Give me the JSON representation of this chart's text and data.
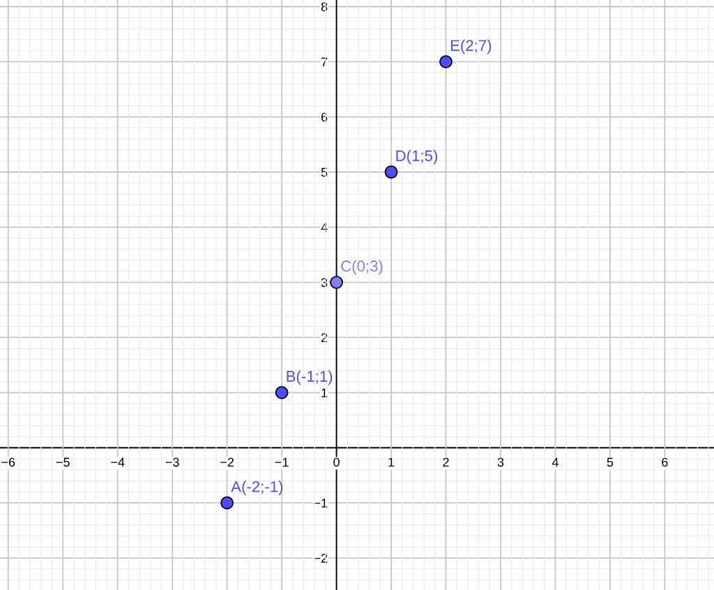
{
  "chart_data": {
    "type": "scatter",
    "x": [
      -2,
      -1,
      0,
      1,
      2
    ],
    "values": [
      -1,
      1,
      3,
      5,
      7
    ],
    "colors": [
      "#4d4dff",
      "#4d4dff",
      "#7f7fff",
      "#4d4dff",
      "#4d4dff"
    ],
    "marker": "circle",
    "xlim": [
      -6.15,
      6.9
    ],
    "ylim": [
      -2.58,
      8.12
    ],
    "xticks": [
      {
        "value": -6,
        "label": "−6"
      },
      {
        "value": -5,
        "label": "−5"
      },
      {
        "value": -4,
        "label": "−4"
      },
      {
        "value": -3,
        "label": "−3"
      },
      {
        "value": -2,
        "label": "−2"
      },
      {
        "value": -1,
        "label": "−1"
      },
      0,
      1,
      2,
      3,
      4,
      5,
      6
    ],
    "yticks": [
      {
        "value": -2,
        "label": "−2"
      },
      {
        "value": -1,
        "label": "−1"
      },
      1,
      2,
      3,
      4,
      5,
      6,
      7,
      8
    ],
    "grid": true,
    "annotations": [
      {
        "text": "A(-2;-1)",
        "x": -2,
        "y": -1
      },
      {
        "text": "B(-1;1)",
        "x": -1,
        "y": 1
      },
      {
        "text": "C(0;3)",
        "x": 0,
        "y": 3
      },
      {
        "text": "D(1;5)",
        "x": 1,
        "y": 5
      },
      {
        "text": "E(2;7)",
        "x": 2,
        "y": 7
      }
    ]
  }
}
